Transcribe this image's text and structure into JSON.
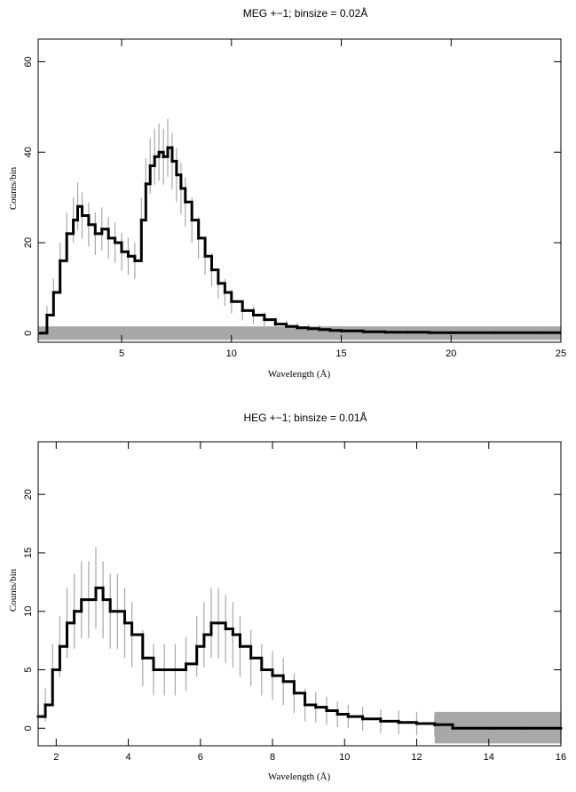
{
  "chart_data": [
    {
      "type": "line",
      "title": "MEG +−1; binsize = 0.02Å",
      "xlabel": "Wavelength (Å)",
      "ylabel": "Counts/bin",
      "xlim": [
        1.2,
        25
      ],
      "ylim": [
        -2,
        65
      ],
      "xticks": [
        5,
        10,
        15,
        20,
        25
      ],
      "yticks": [
        0,
        20,
        40,
        60
      ],
      "binsize": 0.02,
      "style": {
        "data_color": "#000000",
        "error_color": "#a8a8a8"
      },
      "background_band": {
        "x": [
          1.2,
          25
        ],
        "y": [
          -1.5,
          1.5
        ]
      },
      "series": [
        {
          "x": [
            1.3,
            1.6,
            1.9,
            2.2,
            2.5,
            2.8,
            3.0,
            3.2,
            3.5,
            3.8,
            4.1,
            4.4,
            4.7,
            5.0,
            5.3,
            5.6,
            5.9,
            6.1,
            6.3,
            6.5,
            6.7,
            6.9,
            7.1,
            7.3,
            7.5,
            7.7,
            7.9,
            8.2,
            8.5,
            8.8,
            9.1,
            9.4,
            9.7,
            10.0,
            10.5,
            11.0,
            11.5,
            12.0,
            12.5,
            13.0,
            13.5,
            14.0,
            14.5,
            15.0,
            16.0,
            17.0,
            18.0,
            19.0,
            20.0,
            22.0,
            24.0
          ],
          "y": [
            0,
            4,
            9,
            16,
            22,
            25,
            28,
            26,
            24,
            22,
            23,
            21,
            20,
            18,
            17,
            16,
            25,
            33,
            37,
            39,
            40,
            39,
            41,
            38,
            35,
            32,
            29,
            25,
            21,
            17,
            14,
            11,
            9,
            7,
            5,
            4,
            3,
            2,
            1.5,
            1.2,
            1,
            0.8,
            0.6,
            0.5,
            0.3,
            0.2,
            0.2,
            0.1,
            0.1,
            0.1,
            0.1
          ],
          "yerr": [
            0.5,
            2,
            3,
            4,
            4.7,
            5,
            5.3,
            5.1,
            4.9,
            4.7,
            4.8,
            4.6,
            4.5,
            4.2,
            4.1,
            4,
            5,
            5.7,
            6.1,
            6.2,
            6.3,
            6.2,
            6.4,
            6.2,
            5.9,
            5.7,
            5.4,
            5,
            4.6,
            4.1,
            3.7,
            3.3,
            3,
            2.6,
            2.2,
            2,
            1.7,
            1.4,
            1.2,
            1.1,
            1,
            1,
            1,
            1,
            1,
            1,
            1,
            1,
            1,
            1,
            1
          ]
        }
      ]
    },
    {
      "type": "line",
      "title": "HEG +−1; binsize = 0.01Å",
      "xlabel": "Wavelength (Å)",
      "ylabel": "Counts/bin",
      "xlim": [
        1.5,
        16
      ],
      "ylim": [
        -1.5,
        24.5
      ],
      "xticks": [
        2,
        4,
        6,
        8,
        10,
        12,
        14,
        16
      ],
      "yticks": [
        0,
        5,
        10,
        15,
        20
      ],
      "binsize": 0.01,
      "style": {
        "data_color": "#000000",
        "error_color": "#a8a8a8"
      },
      "background_band": {
        "x": [
          12.5,
          16
        ],
        "y": [
          -1.3,
          1.4
        ]
      },
      "series": [
        {
          "x": [
            1.5,
            1.7,
            1.9,
            2.1,
            2.3,
            2.5,
            2.7,
            2.9,
            3.1,
            3.3,
            3.5,
            3.7,
            3.9,
            4.1,
            4.4,
            4.7,
            5.0,
            5.3,
            5.6,
            5.9,
            6.1,
            6.3,
            6.5,
            6.7,
            6.9,
            7.1,
            7.4,
            7.7,
            8.0,
            8.3,
            8.6,
            8.9,
            9.2,
            9.5,
            9.8,
            10.1,
            10.5,
            11.0,
            11.5,
            12.0,
            12.5,
            13.0,
            14.0,
            15.0,
            16.0
          ],
          "y": [
            1,
            2,
            5,
            7,
            9,
            10,
            11,
            11,
            12,
            11,
            10,
            10,
            9,
            8,
            6,
            5,
            5,
            5,
            5.5,
            7,
            8,
            9,
            9,
            8.5,
            8,
            7,
            6,
            5,
            4.5,
            4,
            3,
            2,
            1.8,
            1.5,
            1.2,
            1,
            0.8,
            0.6,
            0.5,
            0.4,
            0.3,
            0,
            0,
            0,
            0
          ],
          "yerr": [
            1,
            1.4,
            2.2,
            2.6,
            3,
            3.2,
            3.3,
            3.3,
            3.5,
            3.3,
            3.2,
            3.2,
            3,
            2.8,
            2.4,
            2.2,
            2.2,
            2.2,
            2.3,
            2.6,
            2.8,
            3,
            3,
            2.9,
            2.8,
            2.6,
            2.4,
            2.2,
            2.1,
            2,
            1.7,
            1.4,
            1.3,
            1.2,
            1.1,
            1,
            1,
            1,
            1,
            1,
            1,
            1.3,
            1.3,
            1.3,
            1.3
          ]
        }
      ]
    }
  ]
}
